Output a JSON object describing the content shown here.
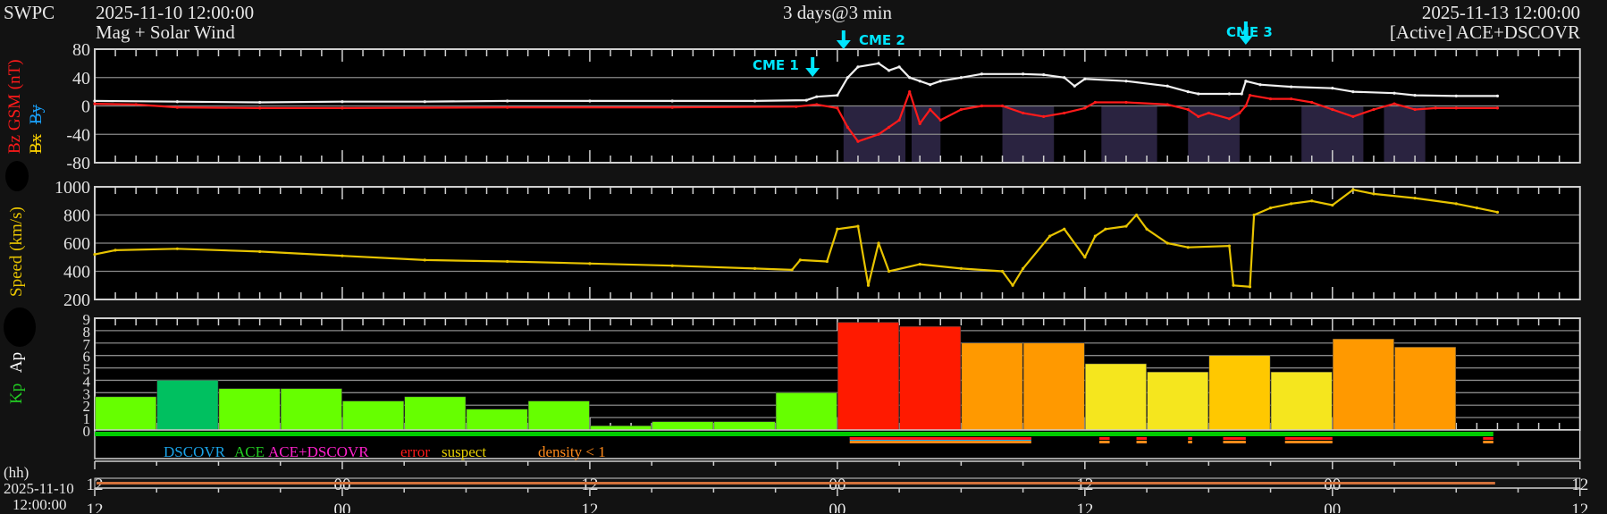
{
  "header": {
    "org": "SWPC",
    "start_time": "2025-11-10 12:00:00",
    "subtitle": "Mag + Solar Wind",
    "span": "3 days@3 min",
    "end_time": "2025-11-13 12:00:00",
    "source": "[Active] ACE+DSCOVR"
  },
  "annotations": [
    {
      "label": "CME 1",
      "hour": 34.8
    },
    {
      "label": "CME 2",
      "hour": 36.3
    },
    {
      "label": "CME 3",
      "hour": 55.8
    }
  ],
  "axis_labels": {
    "mag_bz": "Bz GSM (nT)",
    "mag_bx": "Bx",
    "mag_by": "By",
    "speed": "Speed (km/s)",
    "kp": "Kp",
    "ap": "Ap",
    "time_unit": "(hh)",
    "time_start_date": "2025-11-10",
    "time_start_clock": "12:00:00"
  },
  "legend": {
    "dscovr": "DSCOVR",
    "ace": "ACE",
    "ace_dscovr": "ACE+DSCOVR",
    "error": "error",
    "suspect": "suspect",
    "density": "density < 1"
  },
  "colors": {
    "bt": "#f0f0f0",
    "bz": "#ff1a1a",
    "bx": "#ffd400",
    "by": "#1aa3ff",
    "speed": "#e8c400",
    "kp_quiet": "#66ff00",
    "kp_4": "#00c060",
    "kp_5": "#f5e61e",
    "kp_6": "#ffc800",
    "kp_7": "#ff9900",
    "kp_8": "#ff1a00",
    "annotation": "#00e5ff",
    "quality_ok": "#00cc00"
  },
  "chart_data": [
    {
      "type": "line",
      "title": "Mag + Solar Wind",
      "ylabel": "Bz GSM (nT)",
      "ylim": [
        -80,
        80
      ],
      "yticks": [
        "80",
        "40",
        "0",
        "-40",
        "-80"
      ],
      "x_unit": "hours since 2025-11-10 12:00",
      "series": [
        {
          "name": "Bt",
          "color": "#f0f0f0",
          "points": [
            [
              0,
              7
            ],
            [
              4,
              6
            ],
            [
              8,
              5
            ],
            [
              12,
              6
            ],
            [
              16,
              6
            ],
            [
              20,
              7
            ],
            [
              24,
              7
            ],
            [
              28,
              7
            ],
            [
              32,
              7
            ],
            [
              34.5,
              8
            ],
            [
              35,
              13
            ],
            [
              36,
              15
            ],
            [
              36.5,
              40
            ],
            [
              37,
              55
            ],
            [
              38,
              60
            ],
            [
              38.5,
              50
            ],
            [
              39,
              55
            ],
            [
              39.5,
              40
            ],
            [
              40,
              35
            ],
            [
              40.5,
              30
            ],
            [
              41,
              35
            ],
            [
              42,
              40
            ],
            [
              43,
              45
            ],
            [
              45,
              45
            ],
            [
              46,
              44
            ],
            [
              47,
              40
            ],
            [
              47.5,
              28
            ],
            [
              48,
              38
            ],
            [
              50,
              35
            ],
            [
              52,
              28
            ],
            [
              53,
              20
            ],
            [
              53.5,
              17
            ],
            [
              55,
              17
            ],
            [
              55.6,
              17
            ],
            [
              55.8,
              35
            ],
            [
              56.5,
              30
            ],
            [
              58,
              27
            ],
            [
              60,
              25
            ],
            [
              61,
              20
            ],
            [
              63,
              18
            ],
            [
              64,
              15
            ],
            [
              66,
              14
            ],
            [
              68,
              14
            ]
          ]
        },
        {
          "name": "Bz GSM",
          "color": "#ff1a1a",
          "points": [
            [
              0,
              3
            ],
            [
              2,
              2
            ],
            [
              4,
              -2
            ],
            [
              8,
              -3
            ],
            [
              12,
              -3
            ],
            [
              20,
              -2
            ],
            [
              28,
              -2
            ],
            [
              34,
              -1
            ],
            [
              35,
              2
            ],
            [
              36,
              -3
            ],
            [
              36.5,
              -30
            ],
            [
              37,
              -50
            ],
            [
              38,
              -40
            ],
            [
              38.5,
              -30
            ],
            [
              39,
              -20
            ],
            [
              39.5,
              20
            ],
            [
              40,
              -25
            ],
            [
              40.5,
              -5
            ],
            [
              41,
              -20
            ],
            [
              42,
              -5
            ],
            [
              43,
              0
            ],
            [
              44,
              0
            ],
            [
              45,
              -10
            ],
            [
              46,
              -15
            ],
            [
              47,
              -10
            ],
            [
              48,
              -3
            ],
            [
              48.5,
              5
            ],
            [
              50,
              5
            ],
            [
              52,
              2
            ],
            [
              53,
              -5
            ],
            [
              53.5,
              -15
            ],
            [
              54,
              -10
            ],
            [
              55,
              -18
            ],
            [
              55.5,
              -10
            ],
            [
              55.8,
              0
            ],
            [
              56,
              15
            ],
            [
              57,
              10
            ],
            [
              58,
              10
            ],
            [
              59,
              5
            ],
            [
              60,
              -5
            ],
            [
              61,
              -15
            ],
            [
              62,
              -5
            ],
            [
              63,
              3
            ],
            [
              64,
              -5
            ],
            [
              65,
              -3
            ],
            [
              66,
              -3
            ],
            [
              68,
              -3
            ]
          ]
        }
      ],
      "bz_south_shading_hours": [
        [
          36.3,
          39.3
        ],
        [
          39.6,
          41
        ],
        [
          44,
          46.5
        ],
        [
          48.8,
          51.5
        ],
        [
          53,
          55.5
        ],
        [
          58.5,
          61.5
        ],
        [
          62.5,
          64.5
        ]
      ]
    },
    {
      "type": "line",
      "ylabel": "Speed (km/s)",
      "ylim": [
        200,
        1000
      ],
      "yticks": [
        "1000",
        "800",
        "600",
        "400",
        "200"
      ],
      "series": [
        {
          "name": "Speed",
          "color": "#e8c400",
          "points": [
            [
              0,
              520
            ],
            [
              1,
              550
            ],
            [
              4,
              560
            ],
            [
              8,
              540
            ],
            [
              12,
              510
            ],
            [
              16,
              480
            ],
            [
              20,
              470
            ],
            [
              24,
              455
            ],
            [
              28,
              440
            ],
            [
              32,
              420
            ],
            [
              33.8,
              410
            ],
            [
              34.2,
              480
            ],
            [
              35.5,
              470
            ],
            [
              36,
              700
            ],
            [
              37,
              720
            ],
            [
              37.5,
              300
            ],
            [
              38,
              600
            ],
            [
              38.5,
              400
            ],
            [
              40,
              450
            ],
            [
              42,
              420
            ],
            [
              44,
              400
            ],
            [
              44.5,
              300
            ],
            [
              45,
              420
            ],
            [
              46.3,
              650
            ],
            [
              47,
              700
            ],
            [
              48,
              500
            ],
            [
              48.5,
              650
            ],
            [
              49,
              700
            ],
            [
              50,
              720
            ],
            [
              50.5,
              800
            ],
            [
              51,
              700
            ],
            [
              52,
              600
            ],
            [
              53,
              570
            ],
            [
              55,
              580
            ],
            [
              55.2,
              300
            ],
            [
              56,
              290
            ],
            [
              56.2,
              800
            ],
            [
              57,
              850
            ],
            [
              58,
              880
            ],
            [
              59,
              900
            ],
            [
              60,
              870
            ],
            [
              61,
              980
            ],
            [
              62,
              950
            ],
            [
              64,
              920
            ],
            [
              66,
              880
            ],
            [
              67,
              850
            ],
            [
              68,
              820
            ]
          ]
        }
      ]
    },
    {
      "type": "bar",
      "ylabel": "Kp",
      "ylim": [
        0,
        9
      ],
      "yticks": [
        "9",
        "8",
        "7",
        "6",
        "5",
        "4",
        "3",
        "2",
        "1",
        "0"
      ],
      "bar_hours": 3,
      "values": [
        2.67,
        4,
        3.33,
        3.33,
        2.33,
        2.67,
        1.67,
        2.33,
        0.33,
        0.67,
        0.67,
        3,
        8.67,
        8.33,
        7,
        7,
        5.33,
        4.67,
        6,
        4.67,
        7.33,
        6.67
      ]
    }
  ],
  "quality": {
    "ok_until_hour": 67.8,
    "dscovr_band_hours": [
      36.6,
      45.4
    ],
    "flag_hours": [
      [
        36.6,
        45.4
      ],
      [
        44.2,
        44.8
      ],
      [
        48.7,
        49.2
      ],
      [
        50.5,
        51
      ],
      [
        53,
        53.2
      ],
      [
        54.7,
        55.8
      ],
      [
        57.7,
        60
      ],
      [
        67.3,
        67.8
      ]
    ]
  },
  "time_axis": {
    "labels": [
      "12",
      "00",
      "12",
      "00",
      "12",
      "00",
      "12"
    ]
  }
}
